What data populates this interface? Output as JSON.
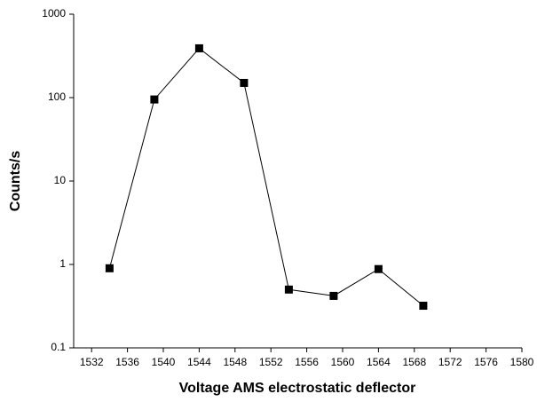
{
  "chart_data": {
    "type": "line",
    "log_y": true,
    "x_label": "Voltage AMS electrostatic deflector",
    "y_label": "Counts/s",
    "x": [
      1534,
      1539,
      1544,
      1549,
      1554,
      1559,
      1564,
      1569
    ],
    "series": [
      {
        "color": "#000000",
        "values": [
          0.9,
          95,
          390,
          150,
          0.5,
          0.42,
          0.88,
          0.32
        ]
      }
    ],
    "xlim": [
      1530,
      1580
    ],
    "xticks": [
      1532,
      1536,
      1540,
      1544,
      1548,
      1552,
      1556,
      1560,
      1564,
      1568,
      1572,
      1576,
      1580
    ],
    "ylim": [
      0.1,
      1000
    ],
    "yticks": [
      0.1,
      1,
      10,
      100,
      1000
    ]
  }
}
